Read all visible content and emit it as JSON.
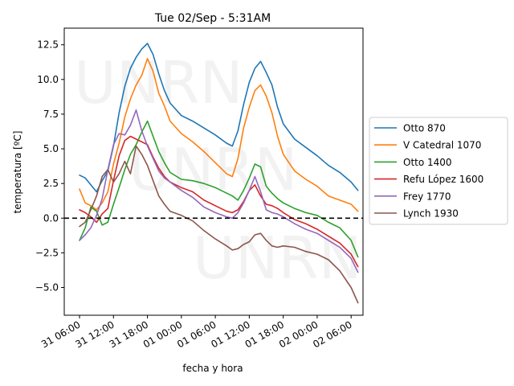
{
  "watermark": "UNRN",
  "chart_data": {
    "type": "line",
    "title": "Tue 02/Sep - 5:31AM",
    "xlabel": "fecha y hora",
    "ylabel": "temperatura [ºC]",
    "x_unit": "hours since 31 00:00",
    "xlim": [
      3.3,
      56.1
    ],
    "ylim": [
      -7.0,
      13.7
    ],
    "xticks": [
      {
        "t": 6,
        "label": "31 06:00"
      },
      {
        "t": 12,
        "label": "31 12:00"
      },
      {
        "t": 18,
        "label": "31 18:00"
      },
      {
        "t": 24,
        "label": "01 00:00"
      },
      {
        "t": 30,
        "label": "01 06:00"
      },
      {
        "t": 36,
        "label": "01 12:00"
      },
      {
        "t": 42,
        "label": "01 18:00"
      },
      {
        "t": 48,
        "label": "02 00:00"
      },
      {
        "t": 54,
        "label": "02 06:00"
      }
    ],
    "yticks": [
      -5.0,
      -2.5,
      0.0,
      2.5,
      5.0,
      7.5,
      10.0,
      12.5
    ],
    "ytick_labels": [
      "−5.0",
      "−2.5",
      "0.0",
      "2.5",
      "5.0",
      "7.5",
      "10.0",
      "12.5"
    ],
    "reference_line": {
      "y": 0.0,
      "style": "dashed",
      "color": "#000000"
    },
    "legend_position": "right-outside",
    "series": [
      {
        "name": "Otto 870",
        "color": "#1f77b4",
        "points": [
          [
            6.0,
            3.1
          ],
          [
            7.0,
            2.9
          ],
          [
            8.0,
            2.4
          ],
          [
            9.0,
            1.9
          ],
          [
            10.0,
            2.7
          ],
          [
            11.0,
            3.4
          ],
          [
            12.0,
            5.2
          ],
          [
            13.0,
            7.6
          ],
          [
            14.0,
            9.5
          ],
          [
            15.0,
            10.8
          ],
          [
            16.0,
            11.6
          ],
          [
            17.0,
            12.2
          ],
          [
            18.0,
            12.6
          ],
          [
            19.0,
            11.8
          ],
          [
            20.0,
            10.4
          ],
          [
            21.0,
            9.2
          ],
          [
            22.0,
            8.3
          ],
          [
            24.0,
            7.4
          ],
          [
            26.0,
            7.0
          ],
          [
            28.0,
            6.5
          ],
          [
            30.0,
            6.0
          ],
          [
            32.0,
            5.4
          ],
          [
            33.0,
            5.2
          ],
          [
            34.0,
            6.3
          ],
          [
            35.0,
            8.2
          ],
          [
            36.0,
            9.8
          ],
          [
            37.0,
            10.8
          ],
          [
            38.0,
            11.3
          ],
          [
            39.0,
            10.5
          ],
          [
            40.0,
            9.6
          ],
          [
            41.0,
            8.0
          ],
          [
            42.0,
            6.8
          ],
          [
            44.0,
            5.7
          ],
          [
            46.0,
            5.1
          ],
          [
            48.0,
            4.5
          ],
          [
            50.0,
            3.8
          ],
          [
            52.0,
            3.3
          ],
          [
            54.0,
            2.6
          ],
          [
            55.2,
            2.0
          ]
        ]
      },
      {
        "name": "V Catedral 1070",
        "color": "#ff7f0e",
        "points": [
          [
            6.0,
            2.1
          ],
          [
            7.0,
            1.1
          ],
          [
            8.0,
            0.9
          ],
          [
            9.0,
            0.6
          ],
          [
            10.0,
            1.1
          ],
          [
            11.0,
            1.9
          ],
          [
            12.0,
            3.9
          ],
          [
            13.0,
            5.4
          ],
          [
            14.0,
            7.3
          ],
          [
            15.0,
            8.6
          ],
          [
            16.0,
            9.6
          ],
          [
            17.0,
            10.3
          ],
          [
            18.0,
            11.5
          ],
          [
            19.0,
            10.6
          ],
          [
            20.0,
            9.0
          ],
          [
            21.0,
            8.1
          ],
          [
            22.0,
            7.0
          ],
          [
            24.0,
            6.1
          ],
          [
            26.0,
            5.5
          ],
          [
            28.0,
            4.8
          ],
          [
            30.0,
            4.0
          ],
          [
            32.0,
            3.2
          ],
          [
            33.0,
            3.0
          ],
          [
            34.0,
            4.3
          ],
          [
            35.0,
            6.5
          ],
          [
            36.0,
            8.0
          ],
          [
            37.0,
            9.2
          ],
          [
            38.0,
            9.6
          ],
          [
            39.0,
            8.8
          ],
          [
            40.0,
            7.6
          ],
          [
            41.0,
            5.9
          ],
          [
            42.0,
            4.6
          ],
          [
            44.0,
            3.4
          ],
          [
            46.0,
            2.8
          ],
          [
            48.0,
            2.3
          ],
          [
            50.0,
            1.6
          ],
          [
            52.0,
            1.3
          ],
          [
            54.0,
            1.0
          ],
          [
            55.2,
            0.5
          ]
        ]
      },
      {
        "name": "Otto 1400",
        "color": "#2ca02c",
        "points": [
          [
            6.0,
            -1.6
          ],
          [
            7.0,
            -0.7
          ],
          [
            8.0,
            0.8
          ],
          [
            9.0,
            0.5
          ],
          [
            10.0,
            -0.5
          ],
          [
            11.0,
            -0.3
          ],
          [
            12.0,
            1.0
          ],
          [
            13.0,
            2.2
          ],
          [
            14.0,
            3.5
          ],
          [
            15.0,
            4.6
          ],
          [
            16.0,
            5.3
          ],
          [
            17.0,
            6.2
          ],
          [
            18.0,
            7.0
          ],
          [
            19.0,
            5.9
          ],
          [
            20.0,
            4.8
          ],
          [
            21.0,
            4.0
          ],
          [
            22.0,
            3.3
          ],
          [
            24.0,
            2.8
          ],
          [
            26.0,
            2.7
          ],
          [
            28.0,
            2.5
          ],
          [
            30.0,
            2.2
          ],
          [
            32.0,
            1.8
          ],
          [
            33.0,
            1.6
          ],
          [
            34.0,
            1.3
          ],
          [
            35.0,
            2.0
          ],
          [
            36.0,
            2.9
          ],
          [
            37.0,
            3.9
          ],
          [
            38.0,
            3.7
          ],
          [
            39.0,
            2.3
          ],
          [
            40.0,
            1.8
          ],
          [
            41.0,
            1.4
          ],
          [
            42.0,
            1.1
          ],
          [
            44.0,
            0.7
          ],
          [
            46.0,
            0.4
          ],
          [
            48.0,
            0.2
          ],
          [
            50.0,
            -0.3
          ],
          [
            52.0,
            -0.7
          ],
          [
            54.0,
            -1.6
          ],
          [
            55.2,
            -2.8
          ]
        ]
      },
      {
        "name": "Refu López 1600",
        "color": "#d62728",
        "points": [
          [
            6.0,
            0.6
          ],
          [
            7.0,
            0.4
          ],
          [
            8.0,
            0.1
          ],
          [
            9.0,
            -0.3
          ],
          [
            10.0,
            0.3
          ],
          [
            11.0,
            0.7
          ],
          [
            12.0,
            2.7
          ],
          [
            13.0,
            4.5
          ],
          [
            14.0,
            5.6
          ],
          [
            15.0,
            5.9
          ],
          [
            16.0,
            5.7
          ],
          [
            17.0,
            5.5
          ],
          [
            18.0,
            5.3
          ],
          [
            19.0,
            4.4
          ],
          [
            20.0,
            3.6
          ],
          [
            21.0,
            3.0
          ],
          [
            22.0,
            2.6
          ],
          [
            24.0,
            2.2
          ],
          [
            26.0,
            1.9
          ],
          [
            28.0,
            1.3
          ],
          [
            30.0,
            0.9
          ],
          [
            32.0,
            0.5
          ],
          [
            33.0,
            0.4
          ],
          [
            34.0,
            0.6
          ],
          [
            35.0,
            1.2
          ],
          [
            36.0,
            2.0
          ],
          [
            37.0,
            2.4
          ],
          [
            38.0,
            1.6
          ],
          [
            39.0,
            1.0
          ],
          [
            40.0,
            0.9
          ],
          [
            41.0,
            0.7
          ],
          [
            42.0,
            0.4
          ],
          [
            44.0,
            -0.1
          ],
          [
            46.0,
            -0.4
          ],
          [
            48.0,
            -0.8
          ],
          [
            50.0,
            -1.3
          ],
          [
            52.0,
            -1.8
          ],
          [
            54.0,
            -2.6
          ],
          [
            55.2,
            -3.5
          ]
        ]
      },
      {
        "name": "Frey 1770",
        "color": "#9467bd",
        "points": [
          [
            6.0,
            -1.6
          ],
          [
            7.0,
            -1.2
          ],
          [
            8.0,
            -0.7
          ],
          [
            9.0,
            0.2
          ],
          [
            10.0,
            1.4
          ],
          [
            11.0,
            3.5
          ],
          [
            12.0,
            5.3
          ],
          [
            13.0,
            6.1
          ],
          [
            14.0,
            6.0
          ],
          [
            15.0,
            6.7
          ],
          [
            16.0,
            7.8
          ],
          [
            17.0,
            6.3
          ],
          [
            18.0,
            5.2
          ],
          [
            19.0,
            4.3
          ],
          [
            20.0,
            3.4
          ],
          [
            21.0,
            2.9
          ],
          [
            22.0,
            2.6
          ],
          [
            24.0,
            2.0
          ],
          [
            26.0,
            1.5
          ],
          [
            28.0,
            0.8
          ],
          [
            30.0,
            0.4
          ],
          [
            32.0,
            0.1
          ],
          [
            33.0,
            0.0
          ],
          [
            34.0,
            0.4
          ],
          [
            35.0,
            1.1
          ],
          [
            36.0,
            2.0
          ],
          [
            37.0,
            3.0
          ],
          [
            38.0,
            1.9
          ],
          [
            39.0,
            0.6
          ],
          [
            40.0,
            0.4
          ],
          [
            41.0,
            0.3
          ],
          [
            42.0,
            0.1
          ],
          [
            44.0,
            -0.4
          ],
          [
            46.0,
            -0.8
          ],
          [
            48.0,
            -1.1
          ],
          [
            50.0,
            -1.6
          ],
          [
            52.0,
            -2.1
          ],
          [
            54.0,
            -2.9
          ],
          [
            55.2,
            -3.9
          ]
        ]
      },
      {
        "name": "Lynch 1930",
        "color": "#8c564b",
        "points": [
          [
            6.0,
            -0.6
          ],
          [
            7.0,
            -0.3
          ],
          [
            8.0,
            0.6
          ],
          [
            9.0,
            1.6
          ],
          [
            10.0,
            3.0
          ],
          [
            11.0,
            3.5
          ],
          [
            12.0,
            2.6
          ],
          [
            13.0,
            3.2
          ],
          [
            14.0,
            4.1
          ],
          [
            15.0,
            3.2
          ],
          [
            16.0,
            5.2
          ],
          [
            17.0,
            4.6
          ],
          [
            18.0,
            3.8
          ],
          [
            19.0,
            2.7
          ],
          [
            20.0,
            1.6
          ],
          [
            21.0,
            1.0
          ],
          [
            22.0,
            0.5
          ],
          [
            24.0,
            0.2
          ],
          [
            26.0,
            -0.2
          ],
          [
            28.0,
            -0.9
          ],
          [
            30.0,
            -1.5
          ],
          [
            32.0,
            -2.0
          ],
          [
            33.0,
            -2.3
          ],
          [
            34.0,
            -2.2
          ],
          [
            35.0,
            -1.9
          ],
          [
            36.0,
            -1.7
          ],
          [
            37.0,
            -1.2
          ],
          [
            38.0,
            -1.1
          ],
          [
            39.0,
            -1.6
          ],
          [
            40.0,
            -2.0
          ],
          [
            41.0,
            -2.1
          ],
          [
            42.0,
            -2.0
          ],
          [
            44.0,
            -2.1
          ],
          [
            46.0,
            -2.4
          ],
          [
            48.0,
            -2.6
          ],
          [
            50.0,
            -3.0
          ],
          [
            52.0,
            -3.8
          ],
          [
            54.0,
            -5.0
          ],
          [
            55.2,
            -6.1
          ]
        ]
      }
    ]
  }
}
